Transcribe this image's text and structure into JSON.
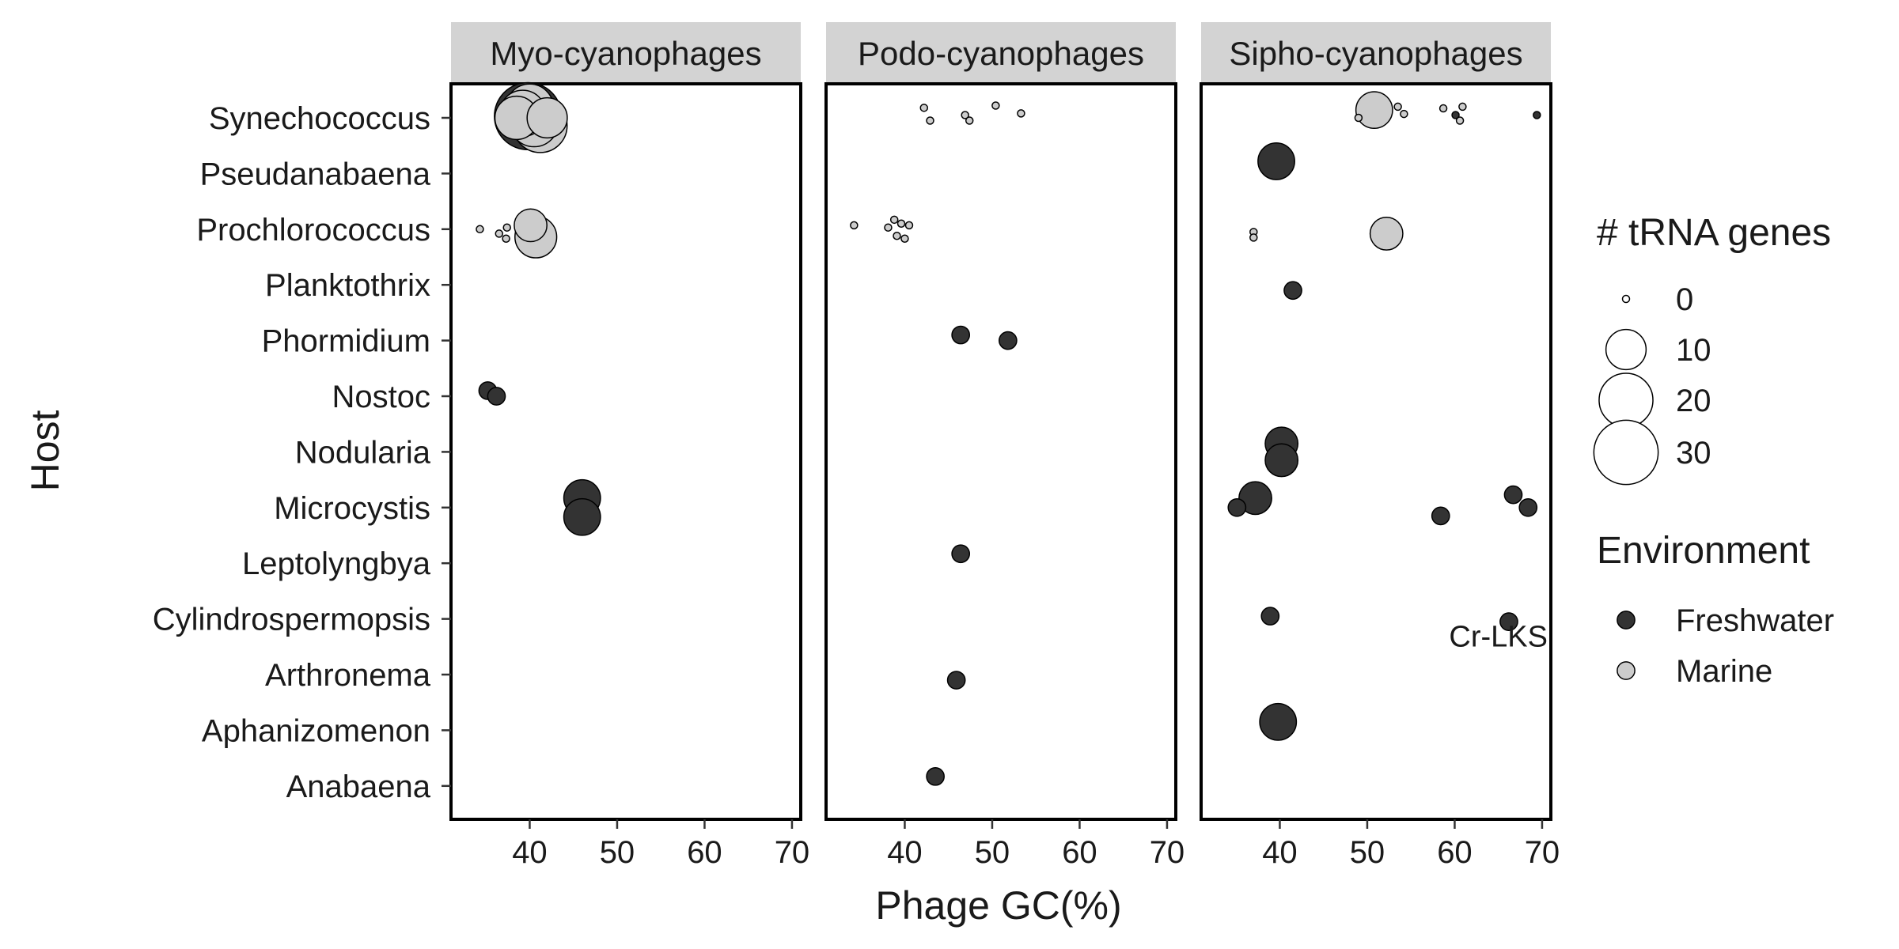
{
  "chart_data": {
    "type": "scatter",
    "xlabel": "Phage GC(%)",
    "ylabel": "Host",
    "xlim": [
      31,
      71
    ],
    "x_ticks": [
      40,
      50,
      60,
      70
    ],
    "hosts": [
      "Synechococcus",
      "Pseudanabaena",
      "Prochlorococcus",
      "Planktothrix",
      "Phormidium",
      "Nostoc",
      "Nodularia",
      "Microcystis",
      "Leptolyngbya",
      "Cylindrospermopsis",
      "Arthronema",
      "Aphanizomenon",
      "Anabaena"
    ],
    "panels": [
      {
        "name": "Myo-cyanophages",
        "points": [
          {
            "host": "Synechococcus",
            "gc": 38.5,
            "dy": 0.0,
            "trna": 12,
            "env": "Marine"
          },
          {
            "host": "Synechococcus",
            "gc": 39.2,
            "dy": -0.08,
            "trna": 14,
            "env": "Marine"
          },
          {
            "host": "Synechococcus",
            "gc": 40.5,
            "dy": 0.08,
            "trna": 16,
            "env": "Marine"
          },
          {
            "host": "Synechococcus",
            "gc": 41.2,
            "dy": 0.14,
            "trna": 20,
            "env": "Marine"
          },
          {
            "host": "Synechococcus",
            "gc": 42.0,
            "dy": 0.0,
            "trna": 10,
            "env": "Marine"
          },
          {
            "host": "Synechococcus",
            "gc": 40.0,
            "dy": -0.18,
            "trna": 15,
            "env": "Marine"
          },
          {
            "host": "Synechococcus",
            "gc": 39.8,
            "dy": -0.03,
            "trna": 33,
            "env": "Freshwater"
          },
          {
            "host": "Prochlorococcus",
            "gc": 34.3,
            "dy": 0.0,
            "trna": 0,
            "env": "Marine"
          },
          {
            "host": "Prochlorococcus",
            "gc": 36.5,
            "dy": 0.08,
            "trna": 0,
            "env": "Marine"
          },
          {
            "host": "Prochlorococcus",
            "gc": 37.3,
            "dy": 0.17,
            "trna": 0,
            "env": "Marine"
          },
          {
            "host": "Prochlorococcus",
            "gc": 37.4,
            "dy": -0.03,
            "trna": 0,
            "env": "Marine"
          },
          {
            "host": "Prochlorococcus",
            "gc": 40.1,
            "dy": -0.07,
            "trna": 6,
            "env": "Marine"
          },
          {
            "host": "Prochlorococcus",
            "gc": 40.7,
            "dy": 0.14,
            "trna": 11,
            "env": "Marine"
          },
          {
            "host": "Nostoc",
            "gc": 35.2,
            "dy": -0.1,
            "trna": 1,
            "env": "Freshwater"
          },
          {
            "host": "Nostoc",
            "gc": 36.2,
            "dy": 0.0,
            "trna": 1,
            "env": "Freshwater"
          },
          {
            "host": "Microcystis",
            "gc": 46.0,
            "dy": -0.17,
            "trna": 8,
            "env": "Freshwater"
          },
          {
            "host": "Microcystis",
            "gc": 46.0,
            "dy": 0.17,
            "trna": 8,
            "env": "Freshwater"
          }
        ]
      },
      {
        "name": "Podo-cyanophages",
        "points": [
          {
            "host": "Synechococcus",
            "gc": 42.2,
            "dy": -0.18,
            "trna": 0,
            "env": "Marine"
          },
          {
            "host": "Synechococcus",
            "gc": 42.9,
            "dy": 0.05,
            "trna": 0,
            "env": "Marine"
          },
          {
            "host": "Synechococcus",
            "gc": 46.9,
            "dy": -0.05,
            "trna": 0,
            "env": "Marine"
          },
          {
            "host": "Synechococcus",
            "gc": 47.4,
            "dy": 0.05,
            "trna": 0,
            "env": "Marine"
          },
          {
            "host": "Synechococcus",
            "gc": 50.4,
            "dy": -0.22,
            "trna": 0,
            "env": "Marine"
          },
          {
            "host": "Synechococcus",
            "gc": 53.3,
            "dy": -0.08,
            "trna": 0,
            "env": "Marine"
          },
          {
            "host": "Prochlorococcus",
            "gc": 34.2,
            "dy": -0.07,
            "trna": 0,
            "env": "Marine"
          },
          {
            "host": "Prochlorococcus",
            "gc": 38.1,
            "dy": -0.03,
            "trna": 0,
            "env": "Marine"
          },
          {
            "host": "Prochlorococcus",
            "gc": 38.8,
            "dy": -0.17,
            "trna": 0,
            "env": "Marine"
          },
          {
            "host": "Prochlorococcus",
            "gc": 39.1,
            "dy": 0.12,
            "trna": 0,
            "env": "Marine"
          },
          {
            "host": "Prochlorococcus",
            "gc": 39.6,
            "dy": -0.1,
            "trna": 0,
            "env": "Marine"
          },
          {
            "host": "Prochlorococcus",
            "gc": 40.0,
            "dy": 0.17,
            "trna": 0,
            "env": "Marine"
          },
          {
            "host": "Prochlorococcus",
            "gc": 40.5,
            "dy": -0.07,
            "trna": 0,
            "env": "Marine"
          },
          {
            "host": "Phormidium",
            "gc": 46.4,
            "dy": -0.1,
            "trna": 1,
            "env": "Freshwater"
          },
          {
            "host": "Phormidium",
            "gc": 51.8,
            "dy": 0.0,
            "trna": 1,
            "env": "Freshwater"
          },
          {
            "host": "Leptolyngbya",
            "gc": 46.4,
            "dy": -0.17,
            "trna": 1,
            "env": "Freshwater"
          },
          {
            "host": "Arthronema",
            "gc": 45.9,
            "dy": 0.1,
            "trna": 1,
            "env": "Freshwater"
          },
          {
            "host": "Anabaena",
            "gc": 43.5,
            "dy": -0.17,
            "trna": 1,
            "env": "Freshwater"
          }
        ]
      },
      {
        "name": "Sipho-cyanophages",
        "points": [
          {
            "host": "Synechococcus",
            "gc": 49.0,
            "dy": 0.0,
            "trna": 0,
            "env": "Marine"
          },
          {
            "host": "Synechococcus",
            "gc": 50.8,
            "dy": -0.14,
            "trna": 8,
            "env": "Marine"
          },
          {
            "host": "Synechococcus",
            "gc": 53.5,
            "dy": -0.2,
            "trna": 0,
            "env": "Marine"
          },
          {
            "host": "Synechococcus",
            "gc": 54.2,
            "dy": -0.07,
            "trna": 0,
            "env": "Marine"
          },
          {
            "host": "Synechococcus",
            "gc": 58.7,
            "dy": -0.17,
            "trna": 0,
            "env": "Marine"
          },
          {
            "host": "Synechococcus",
            "gc": 60.6,
            "dy": 0.05,
            "trna": 0,
            "env": "Marine"
          },
          {
            "host": "Synechococcus",
            "gc": 60.9,
            "dy": -0.2,
            "trna": 0,
            "env": "Marine"
          },
          {
            "host": "Synechococcus",
            "gc": 60.1,
            "dy": -0.05,
            "trna": 0,
            "env": "Freshwater"
          },
          {
            "host": "Synechococcus",
            "gc": 69.4,
            "dy": -0.05,
            "trna": 0,
            "env": "Freshwater"
          },
          {
            "host": "Pseudanabaena",
            "gc": 39.6,
            "dy": -0.22,
            "trna": 8,
            "env": "Freshwater"
          },
          {
            "host": "Prochlorococcus",
            "gc": 37.0,
            "dy": 0.05,
            "trna": 0,
            "env": "Marine"
          },
          {
            "host": "Prochlorococcus",
            "gc": 37.0,
            "dy": 0.15,
            "trna": 0,
            "env": "Marine"
          },
          {
            "host": "Prochlorococcus",
            "gc": 52.2,
            "dy": 0.08,
            "trna": 6,
            "env": "Marine"
          },
          {
            "host": "Planktothrix",
            "gc": 41.5,
            "dy": 0.1,
            "trna": 1,
            "env": "Freshwater"
          },
          {
            "host": "Nodularia",
            "gc": 40.2,
            "dy": -0.15,
            "trna": 6,
            "env": "Freshwater"
          },
          {
            "host": "Nodularia",
            "gc": 40.2,
            "dy": 0.15,
            "trna": 6,
            "env": "Freshwater"
          },
          {
            "host": "Microcystis",
            "gc": 35.1,
            "dy": 0.0,
            "trna": 1,
            "env": "Freshwater"
          },
          {
            "host": "Microcystis",
            "gc": 37.2,
            "dy": -0.17,
            "trna": 6,
            "env": "Freshwater"
          },
          {
            "host": "Microcystis",
            "gc": 58.4,
            "dy": 0.15,
            "trna": 1,
            "env": "Freshwater"
          },
          {
            "host": "Microcystis",
            "gc": 66.7,
            "dy": -0.23,
            "trna": 1,
            "env": "Freshwater"
          },
          {
            "host": "Microcystis",
            "gc": 68.4,
            "dy": 0.0,
            "trna": 1,
            "env": "Freshwater"
          },
          {
            "host": "Cylindrospermopsis",
            "gc": 38.9,
            "dy": -0.05,
            "trna": 1,
            "env": "Freshwater"
          },
          {
            "host": "Cylindrospermopsis",
            "gc": 66.2,
            "dy": 0.05,
            "trna": 1,
            "env": "Freshwater"
          },
          {
            "host": "Aphanizomenon",
            "gc": 39.8,
            "dy": -0.15,
            "trna": 8,
            "env": "Freshwater"
          }
        ],
        "annotation": {
          "text": "Cr-LKS",
          "gc": 65.0,
          "host": "Cylindrospermopsis",
          "dy": 0.3
        }
      }
    ],
    "legend": {
      "size_title": "# tRNA genes",
      "size_breaks": [
        0,
        10,
        20,
        30
      ],
      "color_title": "Environment",
      "color_entries": [
        "Freshwater",
        "Marine"
      ],
      "placement": "right"
    },
    "colors": {
      "Freshwater": "#333333",
      "Marine": "#cccccc",
      "strip": "#d3d3d3"
    }
  }
}
